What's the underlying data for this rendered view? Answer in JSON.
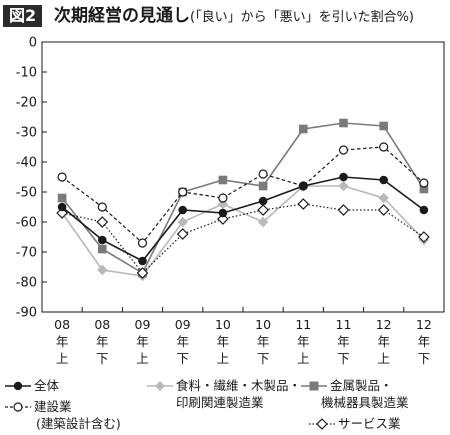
{
  "header": {
    "badge": "図2",
    "title_main": "次期経営の見通し",
    "title_sub": "(「良い」から「悪い」を引いた割合%)"
  },
  "chart_data": {
    "type": "line",
    "categories": [
      [
        "08",
        "年",
        "上"
      ],
      [
        "08",
        "年",
        "下"
      ],
      [
        "09",
        "年",
        "上"
      ],
      [
        "09",
        "年",
        "下"
      ],
      [
        "10",
        "年",
        "上"
      ],
      [
        "10",
        "年",
        "下"
      ],
      [
        "11",
        "年",
        "上"
      ],
      [
        "11",
        "年",
        "下"
      ],
      [
        "12",
        "年",
        "上"
      ],
      [
        "12",
        "年",
        "下"
      ]
    ],
    "ylim": [
      -90,
      0
    ],
    "yticks": [
      0,
      -10,
      -20,
      -30,
      -40,
      -50,
      -60,
      -70,
      -80,
      -90
    ],
    "grid": false,
    "legend_position": "bottom",
    "series": [
      {
        "name": "全体",
        "marker": "circle-filled",
        "line": "solid",
        "color": "#1a1a1a",
        "values": [
          -55,
          -66,
          -73,
          -56,
          -57,
          -53,
          -48,
          -45,
          -46,
          -56
        ]
      },
      {
        "name": "建設業",
        "name_line2": "(建築設計含む)",
        "marker": "circle-open",
        "line": "dashed",
        "color": "#1a1a1a",
        "values": [
          -45,
          -55,
          -67,
          -50,
          -52,
          -44,
          -48,
          -36,
          -35,
          -47
        ]
      },
      {
        "name": "食料・繊維・木製品・",
        "name_line2": "印刷関連製造業",
        "marker": "diamond-filled",
        "line": "solid",
        "color": "#b9b9b9",
        "values": [
          -57,
          -76,
          -78,
          -60,
          -54,
          -60,
          -48,
          -48,
          -52,
          -66
        ]
      },
      {
        "name": "金属製品・",
        "name_line2": "機械器具製造業",
        "marker": "square-filled",
        "line": "solid",
        "color": "#7a7a7a",
        "values": [
          -52,
          -69,
          -77,
          -50,
          -46,
          -48,
          -29,
          -27,
          -28,
          -49
        ]
      },
      {
        "name": "サービス業",
        "marker": "diamond-open",
        "line": "dotted",
        "color": "#1a1a1a",
        "values": [
          -57,
          -60,
          -77,
          -64,
          -59,
          -56,
          -54,
          -56,
          -56,
          -65
        ]
      }
    ]
  }
}
